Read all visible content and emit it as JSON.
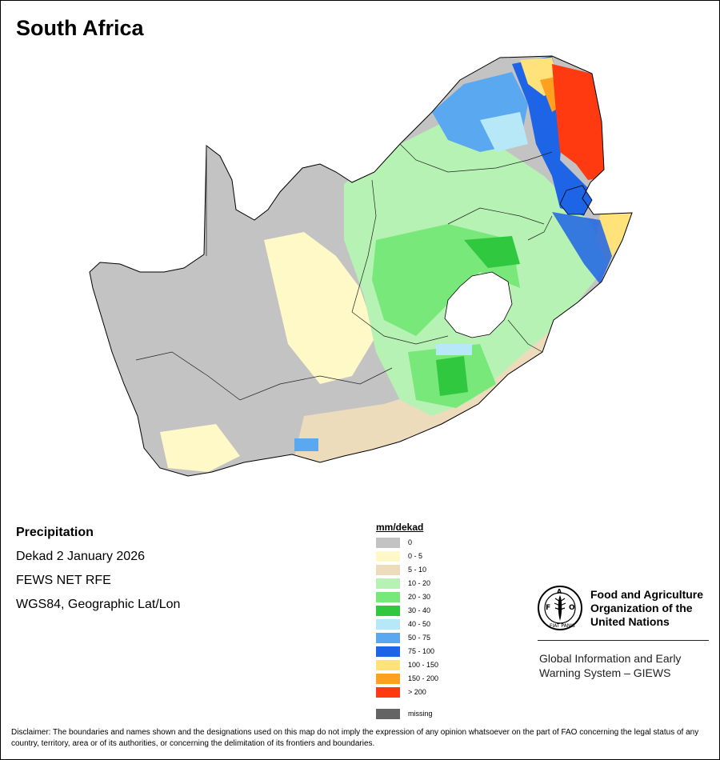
{
  "map": {
    "title": "South Africa"
  },
  "info": {
    "variable": "Precipitation",
    "period": "Dekad 2 January 2026",
    "source": "FEWS NET RFE",
    "projection": "WGS84, Geographic Lat/Lon"
  },
  "legend": {
    "unit": "mm/dekad",
    "classes": [
      {
        "label": "0",
        "color": "#c3c3c3"
      },
      {
        "label": "0 - 5",
        "color": "#fff9c8"
      },
      {
        "label": "5 - 10",
        "color": "#ecdcbc"
      },
      {
        "label": "10 - 20",
        "color": "#b6f2b4"
      },
      {
        "label": "20 - 30",
        "color": "#78e87a"
      },
      {
        "label": "30 - 40",
        "color": "#30c83e"
      },
      {
        "label": "40 - 50",
        "color": "#b6e8f8"
      },
      {
        "label": "50 - 75",
        "color": "#5aa8f0"
      },
      {
        "label": "75 - 100",
        "color": "#1e64e6"
      },
      {
        "label": "100 - 150",
        "color": "#ffe27a"
      },
      {
        "label": "150 - 200",
        "color": "#ffa020"
      },
      {
        "label": "> 200",
        "color": "#ff3a10"
      }
    ],
    "missing": {
      "label": "missing",
      "color": "#646464"
    }
  },
  "logo": {
    "emblem_text": "FIAT PANIS",
    "org_line1": "Food and Agriculture",
    "org_line2": "Organization of the",
    "org_line3": "United Nations",
    "giews_line1": "Global Information and Early",
    "giews_line2": "Warning System – GIEWS"
  },
  "disclaimer": "Disclaimer: The boundaries and names shown and the designations used on this map do not imply the expression of any opinion whatsoever on the part of FAO concerning the legal status of any country, territory, area or of its authorities, or concerning the delimitation of its frontiers and boundaries."
}
